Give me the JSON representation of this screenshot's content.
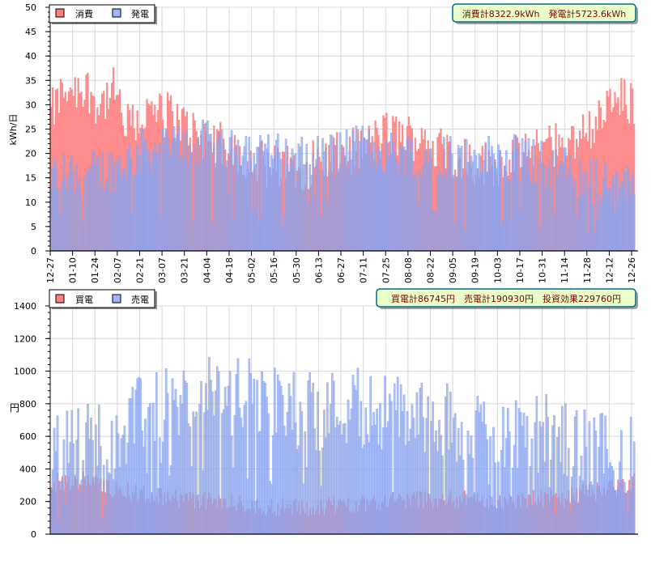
{
  "charts": [
    {
      "ylabel": "kWh/日",
      "legend": [
        {
          "label": "消費",
          "color": "#ff8080"
        },
        {
          "label": "発電",
          "color": "#9fb6ff"
        }
      ],
      "summary": "消費計8322.9kWh　発電計5723.6kWh"
    },
    {
      "ylabel": "円",
      "legend": [
        {
          "label": "買電",
          "color": "#ff8080"
        },
        {
          "label": "売電",
          "color": "#9fb6ff"
        }
      ],
      "summary": "買電計86745円　売電計190930円　投資効果229760円"
    }
  ],
  "chart_data": [
    {
      "type": "bar",
      "ylabel": "kWh/日",
      "ylim": [
        0,
        50
      ],
      "yticks": [
        0,
        5,
        10,
        15,
        20,
        25,
        30,
        35,
        40,
        45,
        50
      ],
      "xtick_labels": [
        "12-27",
        "01-10",
        "01-24",
        "02-07",
        "02-21",
        "03-07",
        "03-21",
        "04-04",
        "04-18",
        "05-02",
        "05-16",
        "05-30",
        "06-13",
        "06-27",
        "07-11",
        "07-25",
        "08-08",
        "08-22",
        "09-05",
        "09-19",
        "10-03",
        "10-17",
        "10-31",
        "11-14",
        "11-28",
        "12-12",
        "12-26"
      ],
      "legend_position": "top-left",
      "grid": true,
      "series": [
        {
          "name": "消費",
          "anchors": [
            [
              0,
              28
            ],
            [
              10,
              34
            ],
            [
              24,
              33
            ],
            [
              30,
              30
            ],
            [
              40,
              33
            ],
            [
              46,
              25
            ],
            [
              60,
              28
            ],
            [
              75,
              28
            ],
            [
              90,
              24
            ],
            [
              110,
              21
            ],
            [
              125,
              19
            ],
            [
              140,
              17
            ],
            [
              155,
              17
            ],
            [
              175,
              19
            ],
            [
              195,
              21
            ],
            [
              210,
              24
            ],
            [
              235,
              23
            ],
            [
              250,
              20
            ],
            [
              265,
              18
            ],
            [
              280,
              18
            ],
            [
              300,
              20
            ],
            [
              315,
              22
            ],
            [
              330,
              23
            ],
            [
              345,
              28
            ],
            [
              355,
              31
            ],
            [
              366,
              30
            ]
          ]
        },
        {
          "name": "発電",
          "anchors": [
            [
              0,
              15
            ],
            [
              10,
              16
            ],
            [
              24,
              16
            ],
            [
              40,
              17
            ],
            [
              55,
              20
            ],
            [
              70,
              21
            ],
            [
              85,
              22
            ],
            [
              100,
              22
            ],
            [
              115,
              22
            ],
            [
              130,
              21
            ],
            [
              145,
              19
            ],
            [
              160,
              19
            ],
            [
              175,
              20
            ],
            [
              195,
              21
            ],
            [
              210,
              20
            ],
            [
              225,
              20
            ],
            [
              245,
              20
            ],
            [
              260,
              19
            ],
            [
              275,
              19
            ],
            [
              290,
              19
            ],
            [
              305,
              18
            ],
            [
              320,
              17
            ],
            [
              335,
              15
            ],
            [
              350,
              13
            ],
            [
              366,
              14
            ]
          ]
        }
      ]
    },
    {
      "type": "bar",
      "ylabel": "円",
      "ylim": [
        0,
        1400
      ],
      "yticks": [
        0,
        200,
        400,
        600,
        800,
        1000,
        1200,
        1400
      ],
      "legend_position": "top-left",
      "grid": true,
      "series": [
        {
          "name": "買電",
          "anchors": [
            [
              0,
              320
            ],
            [
              20,
              330
            ],
            [
              40,
              280
            ],
            [
              60,
              240
            ],
            [
              80,
              220
            ],
            [
              100,
              200
            ],
            [
              120,
              180
            ],
            [
              140,
              170
            ],
            [
              160,
              160
            ],
            [
              180,
              180
            ],
            [
              200,
              200
            ],
            [
              220,
              210
            ],
            [
              240,
              220
            ],
            [
              260,
              210
            ],
            [
              280,
              200
            ],
            [
              300,
              210
            ],
            [
              320,
              220
            ],
            [
              340,
              260
            ],
            [
              366,
              320
            ]
          ]
        },
        {
          "name": "売電",
          "anchors": [
            [
              0,
              480
            ],
            [
              15,
              560
            ],
            [
              35,
              600
            ],
            [
              50,
              700
            ],
            [
              70,
              760
            ],
            [
              90,
              820
            ],
            [
              105,
              850
            ],
            [
              120,
              850
            ],
            [
              135,
              800
            ],
            [
              150,
              760
            ],
            [
              170,
              760
            ],
            [
              190,
              800
            ],
            [
              205,
              760
            ],
            [
              220,
              740
            ],
            [
              240,
              700
            ],
            [
              260,
              660
            ],
            [
              280,
              640
            ],
            [
              300,
              640
            ],
            [
              320,
              580
            ],
            [
              340,
              520
            ],
            [
              366,
              480
            ]
          ]
        }
      ]
    }
  ]
}
